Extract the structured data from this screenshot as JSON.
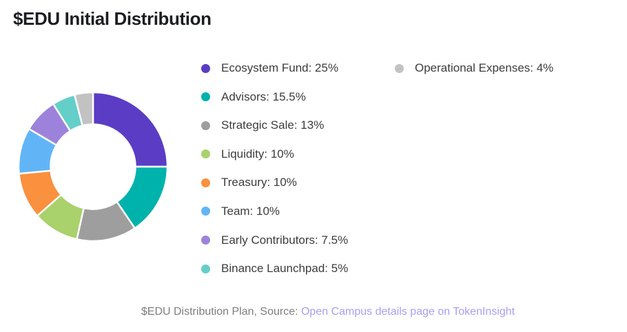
{
  "title": "$EDU Initial Distribution",
  "chart_data": {
    "type": "pie",
    "subtype": "donut",
    "title": "$EDU Initial Distribution",
    "start_angle_deg": 0,
    "direction": "clockwise",
    "inner_radius_ratio": 0.57,
    "legend_position": "right",
    "legend_column_split": 8,
    "segments": [
      {
        "label": "Ecosystem Fund",
        "value": 25,
        "value_text": "25%",
        "color": "#5B3CC4"
      },
      {
        "label": "Advisors",
        "value": 15.5,
        "value_text": "15.5%",
        "color": "#00B2AC"
      },
      {
        "label": "Strategic Sale",
        "value": 13,
        "value_text": "13%",
        "color": "#9E9E9E"
      },
      {
        "label": "Liquidity",
        "value": 10,
        "value_text": "10%",
        "color": "#A9D16C"
      },
      {
        "label": "Treasury",
        "value": 10,
        "value_text": "10%",
        "color": "#F9913F"
      },
      {
        "label": "Team",
        "value": 10,
        "value_text": "10%",
        "color": "#61B5F7"
      },
      {
        "label": "Early Contributors",
        "value": 7.5,
        "value_text": "7.5%",
        "color": "#9D82DB"
      },
      {
        "label": "Binance Launchpad",
        "value": 5,
        "value_text": "5%",
        "color": "#64CEC9"
      },
      {
        "label": "Operational Expenses",
        "value": 4,
        "value_text": "4%",
        "color": "#C2C2C2"
      }
    ]
  },
  "caption": {
    "prefix": "$EDU Distribution Plan, Source: ",
    "link_text": "Open Campus details page on TokenInsight",
    "link_color": "#AB9DF0"
  },
  "colors": {
    "background": "#FFFFFF",
    "title_text": "#1B1D22",
    "legend_text": "#3C3C3C",
    "caption_text": "#7E7E82",
    "segment_gap": "#FFFFFF"
  }
}
